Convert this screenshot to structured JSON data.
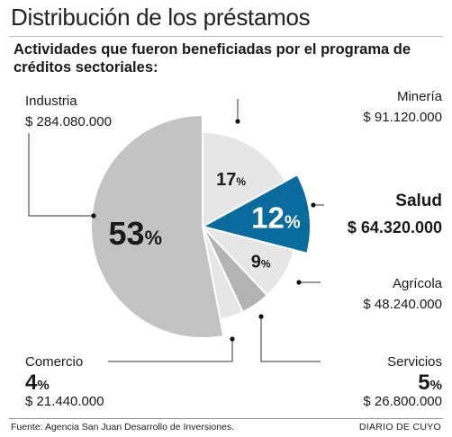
{
  "header": {
    "title": "Distribución de los préstamos",
    "subtitle": "Actividades que fueron beneficiadas por el programa de créditos sectoriales:"
  },
  "chart_data": {
    "type": "pie",
    "unit_symbol": "$",
    "slices": [
      {
        "name": "Minería",
        "percent": 17,
        "percent_label": "17%",
        "value": 91120000,
        "value_label": "$ 91.120.000",
        "color": "#e6e6e8",
        "highlight": false
      },
      {
        "name": "Salud",
        "percent": 12,
        "percent_label": "12%",
        "value": 64320000,
        "value_label": "$ 64.320.000",
        "color": "#0a6c9e",
        "highlight": true
      },
      {
        "name": "Agrícola",
        "percent": 9,
        "percent_label": "9%",
        "value": 48240000,
        "value_label": "$ 48.240.000",
        "color": "#e6e6e8",
        "highlight": false
      },
      {
        "name": "Servicios",
        "percent": 5,
        "percent_label": "5%",
        "value": 26800000,
        "value_label": "$ 26.800.000",
        "color": "#b3b3b6",
        "highlight": false
      },
      {
        "name": "Comercio",
        "percent": 4,
        "percent_label": "4%",
        "value": 21440000,
        "value_label": "$ 21.440.000",
        "color": "#e6e6e8",
        "highlight": false
      },
      {
        "name": "Industria",
        "percent": 53,
        "percent_label": "53%",
        "value": 284080000,
        "value_label": "$ 284.080.000",
        "color": "#c3c3c6",
        "highlight": false
      }
    ]
  },
  "footer": {
    "source": "Fuente: Agencia San Juan Desarrollo de Inversiones.",
    "brand": "DIARIO DE CUYO"
  }
}
